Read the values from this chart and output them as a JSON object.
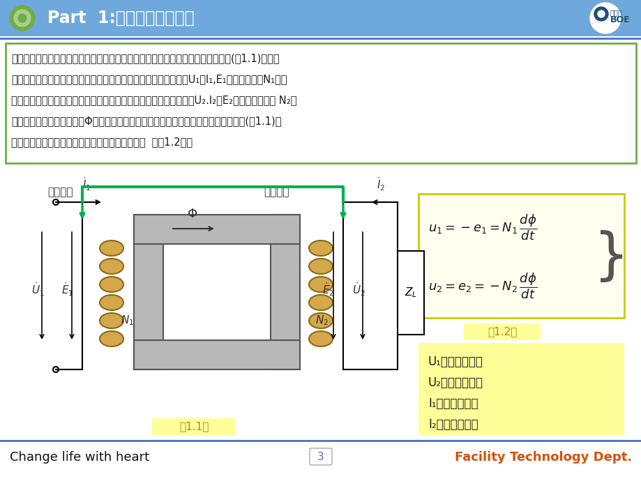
{
  "title": "Part  1:变压器的工作原理",
  "header_bg": "#6fa8dc",
  "footer_left": "Change life with heart",
  "footer_right": "Facility Technology Dept.",
  "footer_page": "3",
  "line_color": "#4472c4",
  "text_box_lines": [
    "变压器的主要部件是一个铁心线圈。这两个线圈具有不同的匝数，且互相绝缘，如(图1.1)所示。",
    "接入电源线圈称为一次绕组，其电压、电流及电动势的相量分别为U₁及I₁,E₁绕组的匝数为N₁。与",
    "负载相联的线圈称为二次绕组，其电压、电流及电动势的相量分别为U₂.I₂及E₂、绕组的匝数为 N₂。",
    "两个绕组的磁通称为主磁通Φ。将电路中惯用的电压、电流及电动势相量的正方向示于(图1.1)。",
    "根据电磁感应定律，可写出电压、电动势的方程式  （图1.2）："
  ],
  "label_yici": "一次线圈",
  "label_erci": "二次线圈",
  "formula_label": "（1.2）",
  "diagram_label": "（1.1）",
  "legend_bg": "#ffff99",
  "formula_bg": "#fffff0",
  "legend_items": [
    "U₁：一次侧电压",
    "U₂：二次侧电压",
    "I₁：一次侧电流",
    "I₂：二次侧电流"
  ]
}
